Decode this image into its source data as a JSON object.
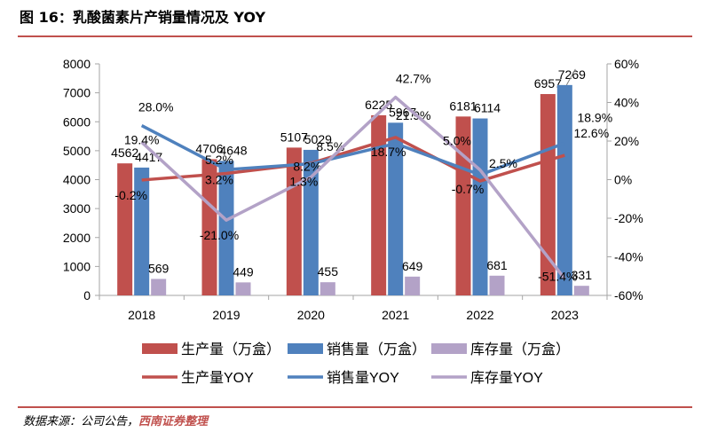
{
  "header": {
    "title": "图 16：乳酸菌素片产销量情况及 YOY"
  },
  "footer": {
    "source_prefix": "数据来源：公司公告，",
    "source_brand": "西南证券整理"
  },
  "colors": {
    "production": "#c0504d",
    "sales": "#4f81bd",
    "inventory": "#b3a2c7",
    "inventory_line": "#b3a2c7",
    "rule": "#c0504d"
  },
  "chart_data": {
    "type": "bar",
    "categories": [
      "2018",
      "2019",
      "2020",
      "2021",
      "2022",
      "2023"
    ],
    "series": [
      {
        "name": "生产量（万盒）",
        "type": "bar",
        "axis": "left",
        "values": [
          4562,
          4706,
          5107,
          6225,
          6181,
          6957
        ],
        "labels": [
          "4562",
          "4706",
          "5107",
          "6225",
          "6181",
          "6957"
        ]
      },
      {
        "name": "销售量（万盒）",
        "type": "bar",
        "axis": "left",
        "values": [
          4417,
          4648,
          5029,
          5967,
          6114,
          7269
        ],
        "labels": [
          "4417",
          "4648",
          "5029",
          "5967",
          "6114",
          "7269"
        ]
      },
      {
        "name": "库存量（万盒）",
        "type": "bar",
        "axis": "left",
        "values": [
          569,
          449,
          455,
          649,
          681,
          331
        ],
        "labels": [
          "569",
          "449",
          "455",
          "649",
          "681",
          "331"
        ]
      },
      {
        "name": "生产量YOY",
        "type": "line",
        "axis": "right",
        "values": [
          -0.2,
          3.2,
          8.5,
          21.9,
          -0.7,
          12.6
        ],
        "labels": [
          "-0.2%",
          "3.2%",
          "8.5%",
          "21.9%",
          "-0.7%",
          "12.6%"
        ]
      },
      {
        "name": "销售量YOY",
        "type": "line",
        "axis": "right",
        "values": [
          28.0,
          5.2,
          8.2,
          18.7,
          2.5,
          18.9
        ],
        "labels": [
          "28.0%",
          "5.2%",
          "8.2%",
          "18.7%",
          "2.5%",
          "18.9%"
        ]
      },
      {
        "name": "库存量YOY",
        "type": "line",
        "axis": "right",
        "values": [
          19.4,
          -21.0,
          1.3,
          42.7,
          5.0,
          -51.4
        ],
        "labels": [
          "19.4%",
          "-21.0%",
          "1.3%",
          "42.7%",
          "5.0%",
          "-51.4%"
        ]
      }
    ],
    "y_left": {
      "ylim": [
        0,
        8000
      ],
      "ticks": [
        "0",
        "1000",
        "2000",
        "3000",
        "4000",
        "5000",
        "6000",
        "7000",
        "8000"
      ]
    },
    "y_right": {
      "ylim": [
        -60,
        60
      ],
      "ticks": [
        "-60%",
        "-40%",
        "-20%",
        "0%",
        "20%",
        "40%",
        "60%"
      ]
    },
    "grid": false,
    "legend_position": "bottom"
  }
}
